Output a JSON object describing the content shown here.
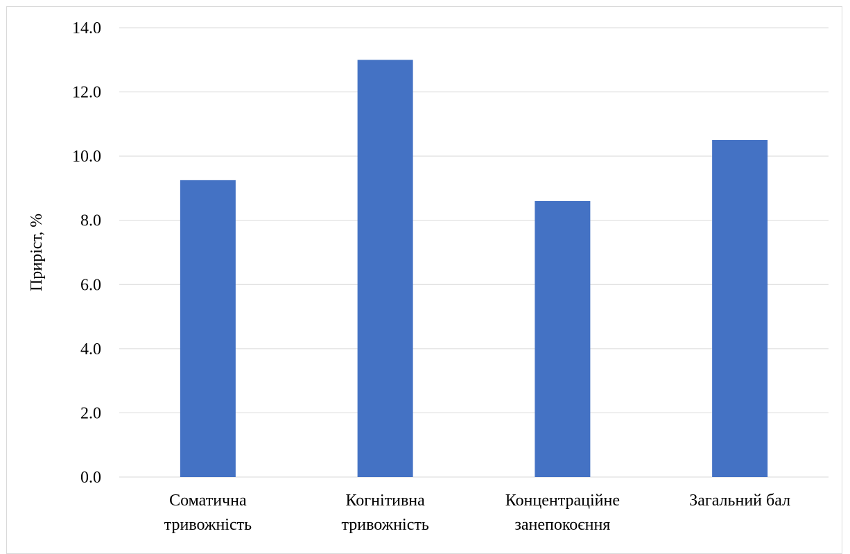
{
  "chart_data": {
    "type": "bar",
    "title": "",
    "xlabel": "",
    "ylabel": "Приріст, %",
    "categories": [
      [
        "Соматична",
        "тривожність"
      ],
      [
        "Когнітивна",
        "тривожність"
      ],
      [
        "Концентраційне",
        "занепокоєння"
      ],
      [
        "Загальний бал"
      ]
    ],
    "values": [
      9.25,
      13.0,
      8.6,
      10.5
    ],
    "ylim": [
      0,
      14
    ],
    "yticks": [
      "0.0",
      "2.0",
      "4.0",
      "6.0",
      "8.0",
      "10.0",
      "12.0",
      "14.0"
    ],
    "grid": true,
    "legend": "none",
    "bar_color": "#4472C4"
  }
}
